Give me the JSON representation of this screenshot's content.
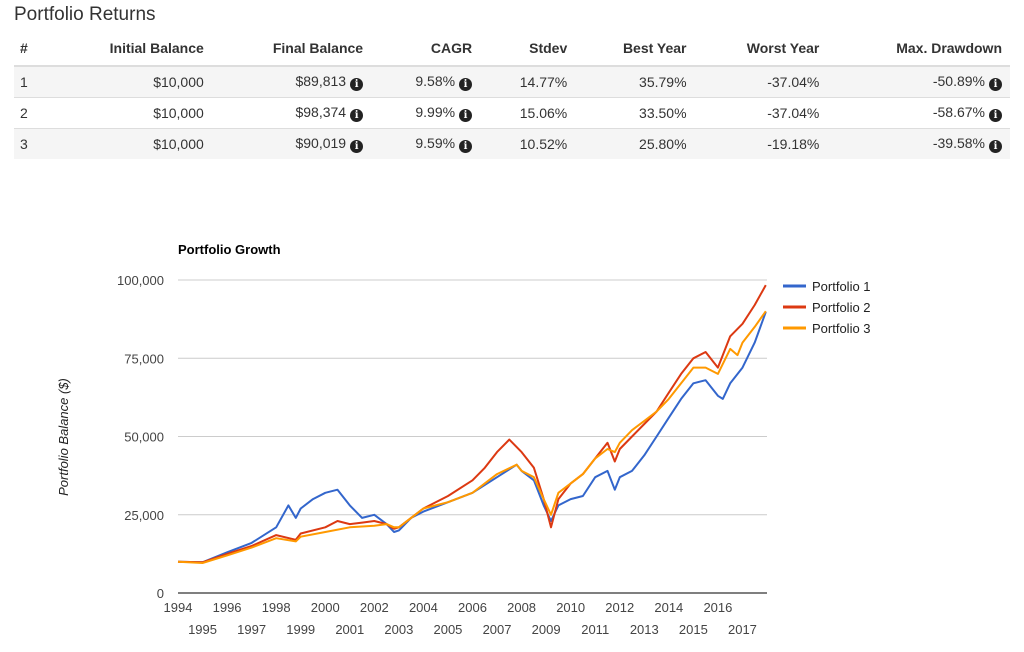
{
  "title": "Portfolio Returns",
  "table": {
    "headers": [
      "#",
      "Initial Balance",
      "Final Balance",
      "CAGR",
      "Stdev",
      "Best Year",
      "Worst Year",
      "Max. Drawdown"
    ],
    "rows": [
      [
        "1",
        "$10,000",
        "$89,813",
        "9.58%",
        "14.77%",
        "35.79%",
        "-37.04%",
        "-50.89%"
      ],
      [
        "2",
        "$10,000",
        "$98,374",
        "9.99%",
        "15.06%",
        "33.50%",
        "-37.04%",
        "-58.67%"
      ],
      [
        "3",
        "$10,000",
        "$90,019",
        "9.59%",
        "10.52%",
        "25.80%",
        "-19.18%",
        "-39.58%"
      ]
    ],
    "info_icon": "info-circle-icon",
    "info_glyph": "i"
  },
  "chart_data": {
    "type": "line",
    "title": "Portfolio Growth",
    "ylabel": "Portfolio Balance ($)",
    "xlabel": "",
    "xlim": [
      1994,
      2018
    ],
    "ylim": [
      0,
      100000
    ],
    "yticks": [
      "0",
      "25,000",
      "50,000",
      "75,000",
      "100,000"
    ],
    "ytick_values": [
      0,
      25000,
      50000,
      75000,
      100000
    ],
    "xticks": [
      "1994",
      "1995",
      "1996",
      "1997",
      "1998",
      "1999",
      "2000",
      "2001",
      "2002",
      "2003",
      "2004",
      "2005",
      "2006",
      "2007",
      "2008",
      "2009",
      "2010",
      "2011",
      "2012",
      "2013",
      "2014",
      "2015",
      "2016",
      "2017"
    ],
    "grid": true,
    "legend": "right",
    "series": [
      {
        "name": "Portfolio 1",
        "color": "#3366cc",
        "x": [
          1994,
          1995,
          1996,
          1997,
          1998,
          1998.5,
          1998.8,
          1999,
          1999.5,
          2000,
          2000.5,
          2001,
          2001.5,
          2002,
          2002.5,
          2002.8,
          2003,
          2003.5,
          2004,
          2005,
          2006,
          2007,
          2007.8,
          2008,
          2008.5,
          2008.9,
          2009.2,
          2009.5,
          2010,
          2010.5,
          2011,
          2011.5,
          2011.8,
          2012,
          2012.5,
          2013,
          2013.5,
          2014,
          2014.5,
          2015,
          2015.5,
          2016,
          2016.2,
          2016.5,
          2017,
          2017.5,
          2017.95
        ],
        "y": [
          10000,
          9800,
          13000,
          16000,
          21000,
          28000,
          24000,
          27000,
          30000,
          32000,
          33000,
          28000,
          24000,
          25000,
          22000,
          19500,
          20000,
          24000,
          26000,
          29000,
          32000,
          37000,
          41000,
          39000,
          36000,
          28000,
          23000,
          28000,
          30000,
          31000,
          37000,
          39000,
          33000,
          37000,
          39000,
          44000,
          50000,
          56000,
          62000,
          67000,
          68000,
          63000,
          62000,
          67000,
          72000,
          80000,
          89813
        ]
      },
      {
        "name": "Portfolio 2",
        "color": "#dc3912",
        "x": [
          1994,
          1995,
          1996,
          1997,
          1998,
          1998.8,
          1999,
          2000,
          2000.5,
          2001,
          2001.5,
          2002,
          2002.5,
          2002.8,
          2003,
          2003.5,
          2004,
          2005,
          2006,
          2006.5,
          2007,
          2007.5,
          2008,
          2008.5,
          2008.9,
          2009.2,
          2009.5,
          2010,
          2010.5,
          2011,
          2011.5,
          2011.8,
          2012,
          2012.5,
          2013,
          2013.5,
          2014,
          2014.5,
          2015,
          2015.5,
          2016,
          2016.5,
          2017,
          2017.5,
          2017.95
        ],
        "y": [
          10000,
          9800,
          12500,
          15000,
          18500,
          17000,
          19000,
          21000,
          23000,
          22000,
          22500,
          23000,
          22000,
          20500,
          21000,
          24000,
          27000,
          31000,
          36000,
          40000,
          45000,
          49000,
          45000,
          40000,
          30000,
          21000,
          30000,
          35000,
          38000,
          43000,
          48000,
          42000,
          46000,
          50000,
          54000,
          58000,
          64000,
          70000,
          75000,
          77000,
          72000,
          82000,
          86000,
          92000,
          98374
        ]
      },
      {
        "name": "Portfolio 3",
        "color": "#ff9900",
        "x": [
          1994,
          1995,
          1996,
          1997,
          1998,
          1998.8,
          1999,
          2000,
          2001,
          2002,
          2002.5,
          2002.8,
          2003,
          2003.5,
          2004,
          2005,
          2006,
          2007,
          2007.8,
          2008,
          2008.5,
          2008.9,
          2009.2,
          2009.5,
          2010,
          2010.5,
          2011,
          2011.5,
          2011.8,
          2012,
          2012.5,
          2013,
          2013.5,
          2014,
          2014.5,
          2015,
          2015.5,
          2016,
          2016.5,
          2016.8,
          2017,
          2017.5,
          2017.95
        ],
        "y": [
          10000,
          9600,
          12000,
          14500,
          17500,
          16500,
          18000,
          19500,
          21000,
          21500,
          22000,
          21000,
          21000,
          24000,
          27000,
          29000,
          32000,
          38000,
          41000,
          39000,
          37000,
          30000,
          25000,
          32000,
          35000,
          38000,
          43000,
          46000,
          45000,
          48000,
          52000,
          55000,
          58000,
          62000,
          67000,
          72000,
          72000,
          70000,
          78000,
          76000,
          80000,
          85000,
          90019
        ]
      }
    ]
  }
}
